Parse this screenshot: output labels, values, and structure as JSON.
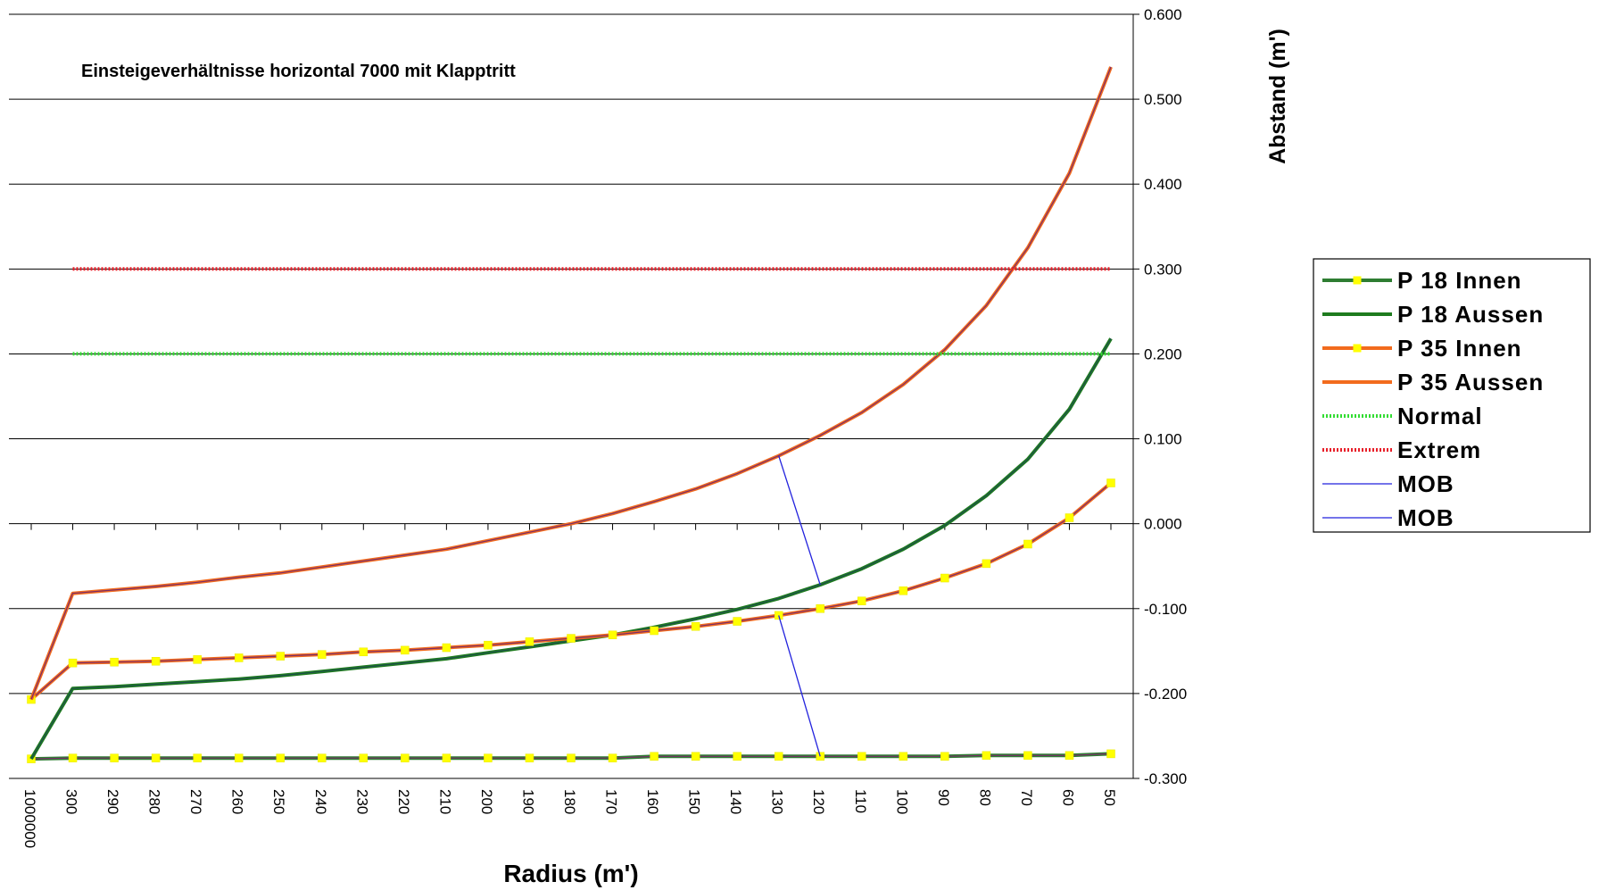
{
  "chart_data": {
    "type": "line",
    "title": "Einsteigeverhältnisse horizontal 7000 mit Klapptritt",
    "xlabel": "Radius (m')",
    "ylabel": "Abstand (m')",
    "ylim": [
      -0.3,
      0.6
    ],
    "y_ticks": [
      "-0.300",
      "-0.200",
      "-0.100",
      "0.000",
      "0.100",
      "0.200",
      "0.300",
      "0.400",
      "0.500",
      "0.600"
    ],
    "y_axis_position": "right",
    "grid": true,
    "legend_position": "right",
    "categories": [
      "1000000",
      "300",
      "290",
      "280",
      "270",
      "260",
      "250",
      "240",
      "230",
      "220",
      "210",
      "200",
      "190",
      "180",
      "170",
      "160",
      "150",
      "140",
      "130",
      "120",
      "110",
      "100",
      "90",
      "80",
      "70",
      "60",
      "50"
    ],
    "series": [
      {
        "name": "P 18 Innen",
        "color": "#2E7D32",
        "marker": "yellow-square",
        "style": "solid",
        "values": [
          -0.277,
          -0.276,
          -0.276,
          -0.276,
          -0.276,
          -0.276,
          -0.276,
          -0.276,
          -0.276,
          -0.276,
          -0.276,
          -0.276,
          -0.276,
          -0.276,
          -0.276,
          -0.274,
          -0.274,
          -0.274,
          -0.274,
          -0.274,
          -0.274,
          -0.274,
          -0.274,
          -0.273,
          -0.273,
          -0.273,
          -0.271
        ]
      },
      {
        "name": "P 18 Aussen",
        "color": "#1E7B1E",
        "marker": "none",
        "style": "solid",
        "values": [
          -0.277,
          -0.194,
          -0.192,
          -0.189,
          -0.186,
          -0.183,
          -0.179,
          -0.174,
          -0.169,
          -0.164,
          -0.159,
          -0.152,
          -0.145,
          -0.138,
          -0.131,
          -0.122,
          -0.112,
          -0.101,
          -0.088,
          -0.072,
          -0.053,
          -0.03,
          -0.002,
          0.033,
          0.076,
          0.135,
          0.218
        ]
      },
      {
        "name": "P 35 Innen",
        "color": "#F26B1D",
        "marker": "yellow-square",
        "style": "solid",
        "values": [
          -0.207,
          -0.164,
          -0.163,
          -0.162,
          -0.16,
          -0.158,
          -0.156,
          -0.154,
          -0.151,
          -0.149,
          -0.146,
          -0.143,
          -0.139,
          -0.135,
          -0.131,
          -0.126,
          -0.121,
          -0.115,
          -0.108,
          -0.1,
          -0.091,
          -0.079,
          -0.064,
          -0.047,
          -0.024,
          0.007,
          0.048
        ]
      },
      {
        "name": "P 35 Aussen",
        "color": "#F26B1D",
        "marker": "none",
        "style": "solid",
        "values": [
          -0.207,
          -0.082,
          -0.078,
          -0.074,
          -0.069,
          -0.063,
          -0.058,
          -0.051,
          -0.044,
          -0.037,
          -0.03,
          -0.02,
          -0.01,
          0.0,
          0.012,
          0.026,
          0.041,
          0.059,
          0.08,
          0.104,
          0.131,
          0.164,
          0.205,
          0.257,
          0.325,
          0.413,
          0.538
        ]
      },
      {
        "name": "Normal",
        "color": "#33DD33",
        "marker": "none",
        "style": "dotted",
        "values": [
          null,
          0.2,
          0.2,
          0.2,
          0.2,
          0.2,
          0.2,
          0.2,
          0.2,
          0.2,
          0.2,
          0.2,
          0.2,
          0.2,
          0.2,
          0.2,
          0.2,
          0.2,
          0.2,
          0.2,
          0.2,
          0.2,
          0.2,
          0.2,
          0.2,
          0.2,
          0.2
        ]
      },
      {
        "name": "Extrem",
        "color": "#E8202A",
        "marker": "none",
        "style": "dotted",
        "values": [
          null,
          0.3,
          0.3,
          0.3,
          0.3,
          0.3,
          0.3,
          0.3,
          0.3,
          0.3,
          0.3,
          0.3,
          0.3,
          0.3,
          0.3,
          0.3,
          0.3,
          0.3,
          0.3,
          0.3,
          0.3,
          0.3,
          0.3,
          0.3,
          0.3,
          0.3,
          0.3
        ]
      },
      {
        "name": "MOB",
        "color": "#2222DD",
        "marker": "none",
        "style": "solid",
        "thin": true,
        "points": [
          {
            "x": "130",
            "y": 0.08
          },
          {
            "x": "120",
            "y": -0.072
          }
        ]
      },
      {
        "name": "MOB",
        "color": "#2222DD",
        "marker": "none",
        "style": "solid",
        "thin": true,
        "points": [
          {
            "x": "130",
            "y": -0.108
          },
          {
            "x": "120",
            "y": -0.274
          }
        ]
      }
    ]
  }
}
